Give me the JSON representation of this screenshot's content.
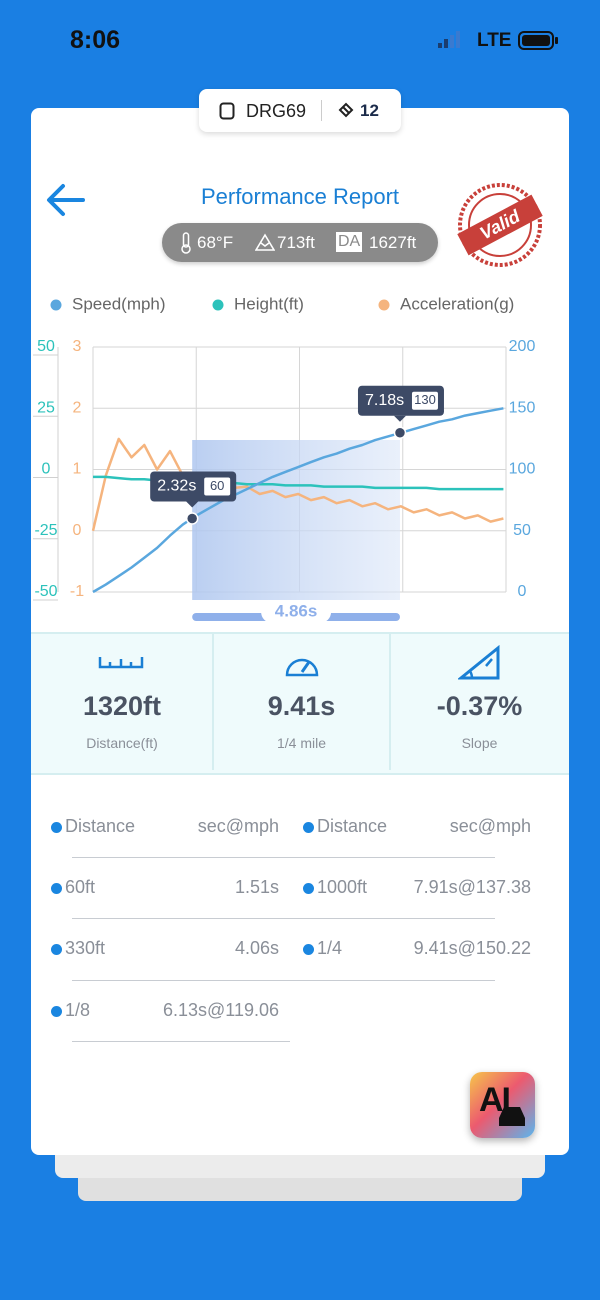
{
  "status": {
    "time": "8:06",
    "network": "LTE"
  },
  "device": {
    "name": "DRG69",
    "count": "12"
  },
  "header": {
    "title": "Performance Report",
    "temperature": "68°F",
    "elevation": "713ft",
    "da_label": "DA",
    "density_altitude": "1627ft",
    "stamp": "Valid"
  },
  "chart_data": {
    "type": "line",
    "x": [
      0,
      0.3,
      0.6,
      0.9,
      1.2,
      1.5,
      1.8,
      2.1,
      2.4,
      2.7,
      3.0,
      3.3,
      3.6,
      3.9,
      4.2,
      4.5,
      4.8,
      5.1,
      5.4,
      5.7,
      6.0,
      6.3,
      6.6,
      6.9,
      7.2,
      7.5,
      7.8,
      8.1,
      8.4,
      8.7,
      9.0,
      9.3,
      9.6
    ],
    "xlim": [
      0,
      9.66
    ],
    "xticks": [
      0,
      2.415,
      4.83,
      7.245,
      9.66
    ],
    "ylim": [
      -50,
      50
    ],
    "yticks": [
      -50,
      -25,
      0,
      25,
      50
    ],
    "y2lim": [
      0,
      200
    ],
    "y2ticks": [
      0,
      50,
      100,
      150,
      200
    ],
    "y3lim": [
      -1,
      3
    ],
    "y3ticks": [
      -1,
      0,
      1,
      2,
      3
    ],
    "grid": true,
    "series": [
      {
        "name": "Speed(mph)",
        "color": "#5aa7de",
        "axis": "y2",
        "values": [
          0,
          6,
          13,
          20,
          28,
          36,
          46,
          55,
          62,
          68,
          74,
          79,
          84,
          89,
          94,
          98,
          102,
          106,
          110,
          113,
          117,
          120,
          124,
          127,
          130,
          133,
          136,
          139,
          141,
          144,
          146,
          148,
          150
        ]
      },
      {
        "name": "Height(ft)",
        "color": "#2cc2bb",
        "axis": "y",
        "values": [
          -3,
          -3,
          -3.5,
          -4,
          -4,
          -4.5,
          -4.5,
          -5,
          -5,
          -5,
          -5.5,
          -5.5,
          -6,
          -6,
          -6,
          -6.5,
          -6.5,
          -6.5,
          -7,
          -7,
          -7,
          -7,
          -7.5,
          -7.5,
          -7.5,
          -7.5,
          -7.5,
          -8,
          -8,
          -8,
          -8,
          -8,
          -8
        ]
      },
      {
        "name": "Acceleration(g)",
        "color": "#f5b47e",
        "axis": "y3",
        "values": [
          0,
          0.9,
          1.5,
          1.2,
          1.4,
          1.0,
          1.3,
          0.9,
          0.85,
          0.8,
          0.75,
          0.7,
          0.72,
          0.6,
          0.65,
          0.55,
          0.6,
          0.5,
          0.55,
          0.45,
          0.5,
          0.4,
          0.45,
          0.35,
          0.4,
          0.3,
          0.35,
          0.25,
          0.3,
          0.2,
          0.25,
          0.15,
          0.2
        ]
      }
    ],
    "annotations": [
      {
        "x": 2.32,
        "label": "2.32s",
        "value": 60
      },
      {
        "x": 7.18,
        "label": "7.18s",
        "value": 130
      }
    ],
    "range_label": "4.86s"
  },
  "stats": [
    {
      "value": "1320ft",
      "label": "Distance(ft)"
    },
    {
      "value": "9.41s",
      "label": "1/4 mile"
    },
    {
      "value": "-0.37%",
      "label": "Slope"
    }
  ],
  "table": {
    "header": [
      "Distance",
      "sec@mph"
    ],
    "left_rows": [
      [
        "60ft",
        "1.51s"
      ],
      [
        "330ft",
        "4.06s"
      ],
      [
        "1/8",
        "6.13s@119.06"
      ]
    ],
    "right_rows": [
      [
        "1000ft",
        "7.91s@137.38"
      ],
      [
        "1/4",
        "9.41s@150.22"
      ]
    ]
  },
  "ai_button": "AI"
}
